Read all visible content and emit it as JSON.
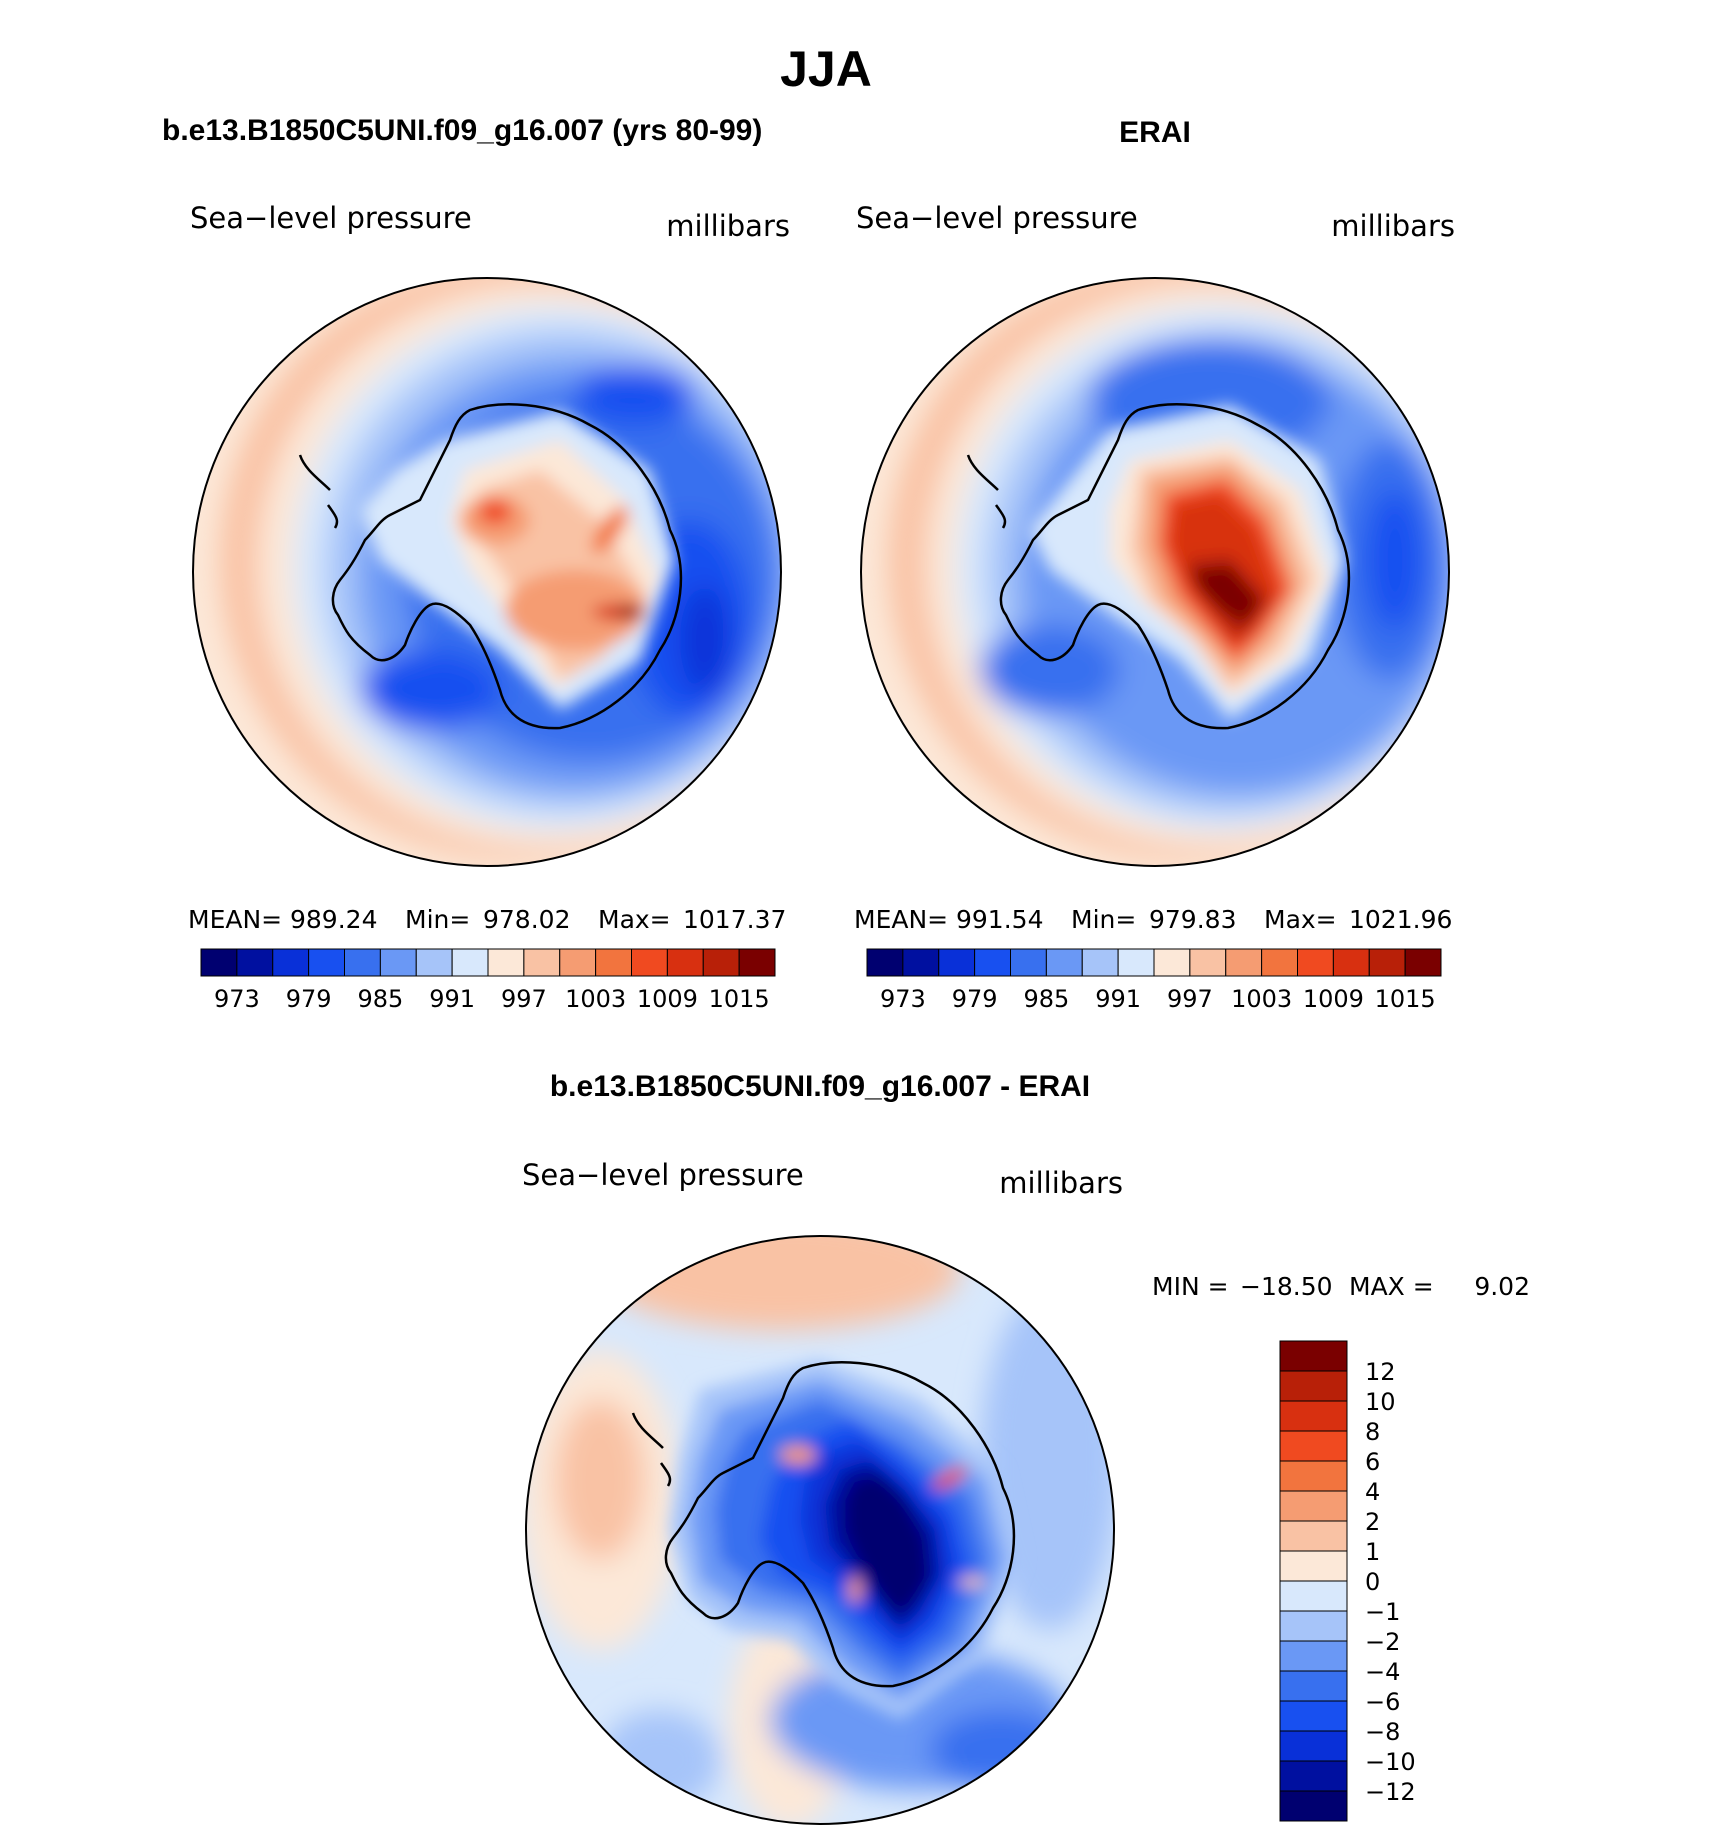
{
  "page_title": "JJA",
  "variable": "Sea−level pressure",
  "units": "millibars",
  "colors": {
    "ocean_background": "#ffffff",
    "coastline": "#000000",
    "scale_16": [
      "#000070",
      "#0010a0",
      "#0930d8",
      "#1850f0",
      "#3870ef",
      "#6a98f5",
      "#a6c4f9",
      "#d8e8fc",
      "#fce8d8",
      "#f9c2a4",
      "#f59c72",
      "#f2743e",
      "#f04a20",
      "#d83010",
      "#b82008",
      "#7a0000"
    ],
    "scale_diff": [
      "#000070",
      "#0010a0",
      "#0930d8",
      "#1850f0",
      "#3870ef",
      "#6a98f5",
      "#a6c4f9",
      "#d8e8fc",
      "#fce8d8",
      "#f9c2a4",
      "#f59c72",
      "#f2743e",
      "#f04a20",
      "#d83010",
      "#b82008",
      "#7a0000"
    ]
  },
  "chart_data": [
    {
      "type": "heatmap",
      "projection": "south-polar-stereographic",
      "title": "b.e13.B1850C5UNI.f09_g16.007 (yrs 80-99)",
      "left_label": "Sea−level pressure",
      "right_label": "millibars",
      "stats": {
        "mean_label": "MEAN=",
        "mean": "989.24",
        "min_label": "Min=",
        "min": "978.02",
        "max_label": "Max=",
        "max": "1017.37"
      },
      "colorbar_ticks": [
        "973",
        "979",
        "985",
        "991",
        "997",
        "1003",
        "1009",
        "1015"
      ],
      "levels": [
        973,
        976,
        979,
        982,
        985,
        988,
        991,
        994,
        997,
        1000,
        1003,
        1006,
        1009,
        1012,
        1015
      ]
    },
    {
      "type": "heatmap",
      "projection": "south-polar-stereographic",
      "title": "ERAI",
      "left_label": "Sea−level pressure",
      "right_label": "millibars",
      "stats": {
        "mean_label": "MEAN=",
        "mean": "991.54",
        "min_label": "Min=",
        "min": "979.83",
        "max_label": "Max=",
        "max": "1021.96"
      },
      "colorbar_ticks": [
        "973",
        "979",
        "985",
        "991",
        "997",
        "1003",
        "1009",
        "1015"
      ],
      "levels": [
        973,
        976,
        979,
        982,
        985,
        988,
        991,
        994,
        997,
        1000,
        1003,
        1006,
        1009,
        1012,
        1015
      ]
    },
    {
      "type": "heatmap",
      "projection": "south-polar-stereographic",
      "title": "b.e13.B1850C5UNI.f09_g16.007 - ERAI",
      "left_label": "Sea−level pressure",
      "right_label": "millibars",
      "stats": {
        "min_label": "MIN =",
        "min": "−18.50",
        "max_label": "MAX =",
        "max": "9.02"
      },
      "colorbar_ticks": [
        "12",
        "10",
        "8",
        "6",
        "4",
        "2",
        "1",
        "0",
        "−1",
        "−2",
        "−4",
        "−6",
        "−8",
        "−10",
        "−12"
      ],
      "levels": [
        -12,
        -10,
        -8,
        -6,
        -4,
        -2,
        -1,
        0,
        1,
        2,
        4,
        6,
        8,
        10,
        12
      ]
    }
  ]
}
